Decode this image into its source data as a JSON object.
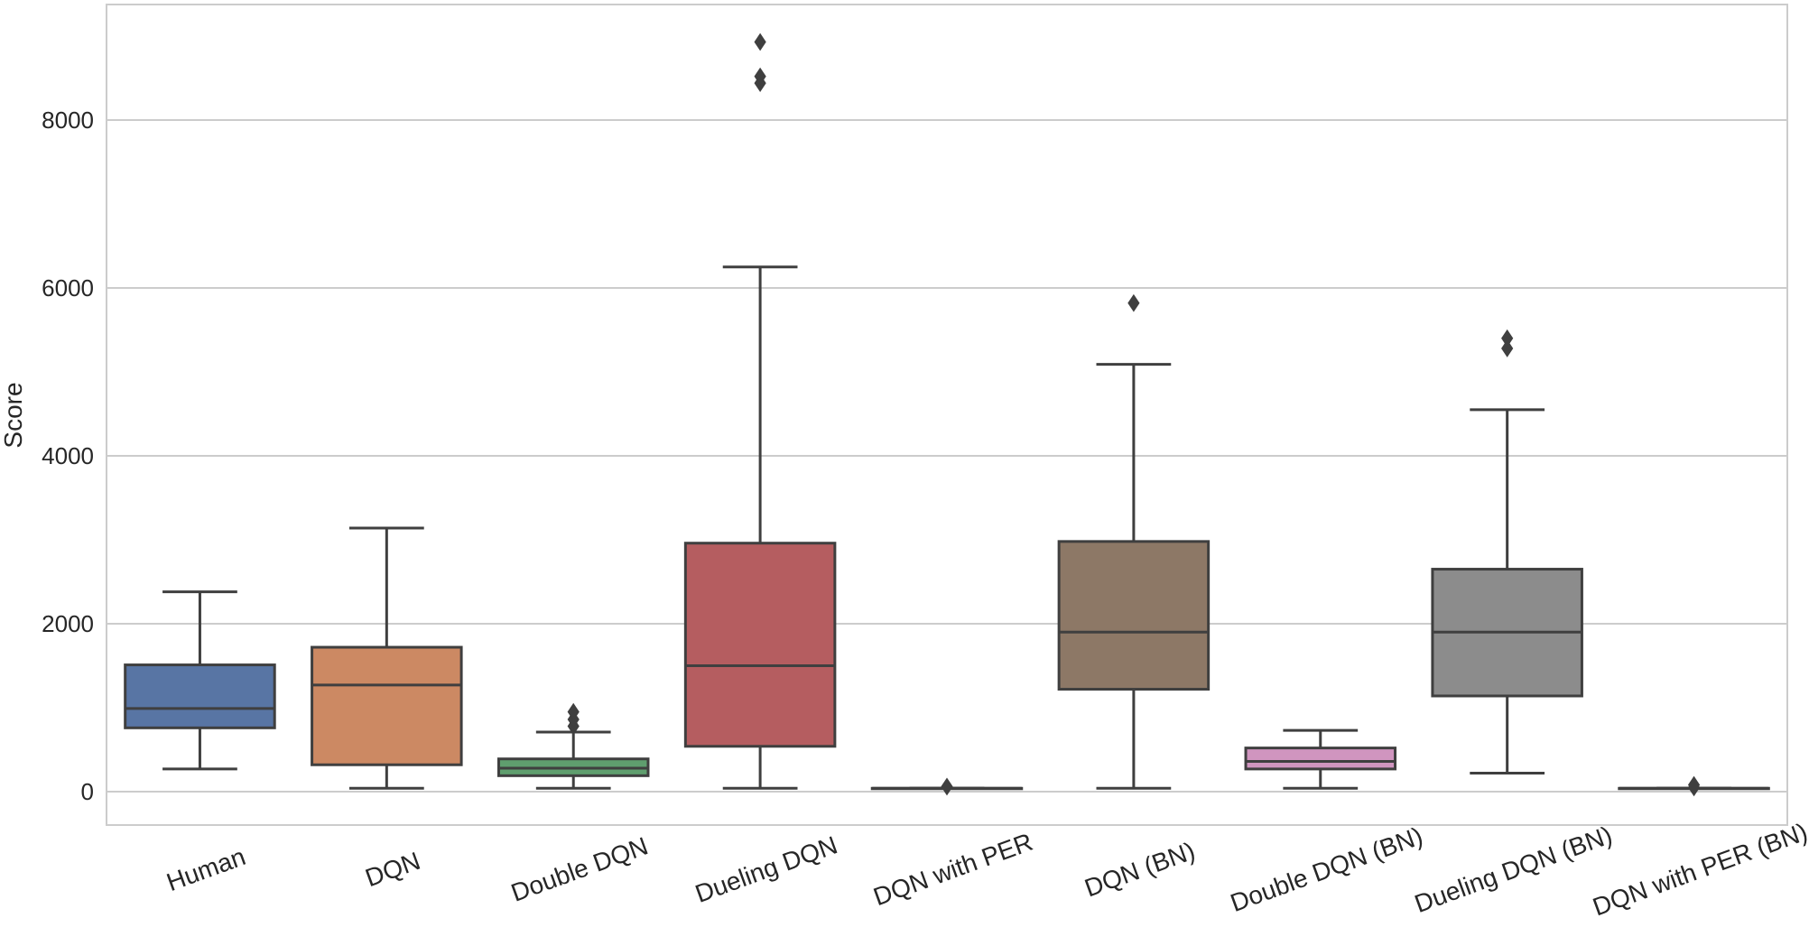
{
  "chart_data": {
    "type": "boxplot",
    "title": "",
    "xlabel": "",
    "ylabel": "Score",
    "ylim": [
      -400,
      9400
    ],
    "yticks": [
      0,
      2000,
      4000,
      6000,
      8000
    ],
    "grid": "horizontal",
    "categories": [
      "Human",
      "DQN",
      "Double DQN",
      "Dueling DQN",
      "DQN with PER",
      "DQN (BN)",
      "Double DQN (BN)",
      "Dueling DQN (BN)",
      "DQN with PER (BN)"
    ],
    "series": [
      {
        "category": "Human",
        "color": "#5875a4",
        "whisker_low": 270,
        "q1": 760,
        "median": 990,
        "q3": 1510,
        "whisker_high": 2380,
        "outliers": []
      },
      {
        "category": "DQN",
        "color": "#cc8963",
        "whisker_low": 40,
        "q1": 320,
        "median": 1270,
        "q3": 1720,
        "whisker_high": 3140,
        "outliers": []
      },
      {
        "category": "Double DQN",
        "color": "#5f9e6e",
        "whisker_low": 40,
        "q1": 190,
        "median": 280,
        "q3": 390,
        "whisker_high": 710,
        "outliers": [
          780,
          860,
          950
        ]
      },
      {
        "category": "Dueling DQN",
        "color": "#b55d60",
        "whisker_low": 40,
        "q1": 540,
        "median": 1500,
        "q3": 2960,
        "whisker_high": 6250,
        "outliers": [
          8440,
          8520,
          8930
        ]
      },
      {
        "category": "DQN with PER",
        "color": "#857aab",
        "whisker_low": 40,
        "q1": 40,
        "median": 40,
        "q3": 40,
        "whisker_high": 40,
        "outliers": [
          60
        ]
      },
      {
        "category": "DQN (BN)",
        "color": "#8d7866",
        "whisker_low": 40,
        "q1": 1220,
        "median": 1900,
        "q3": 2980,
        "whisker_high": 5090,
        "outliers": [
          5820
        ]
      },
      {
        "category": "Double DQN (BN)",
        "color": "#d095bf",
        "whisker_low": 40,
        "q1": 270,
        "median": 360,
        "q3": 520,
        "whisker_high": 730,
        "outliers": []
      },
      {
        "category": "Dueling DQN (BN)",
        "color": "#8c8c8c",
        "whisker_low": 220,
        "q1": 1140,
        "median": 1900,
        "q3": 2650,
        "whisker_high": 4550,
        "outliers": [
          5280,
          5400
        ]
      },
      {
        "category": "DQN with PER (BN)",
        "color": "#c1b37f",
        "whisker_low": 40,
        "q1": 40,
        "median": 40,
        "q3": 40,
        "whisker_high": 40,
        "outliers": [
          50,
          80
        ]
      }
    ]
  }
}
